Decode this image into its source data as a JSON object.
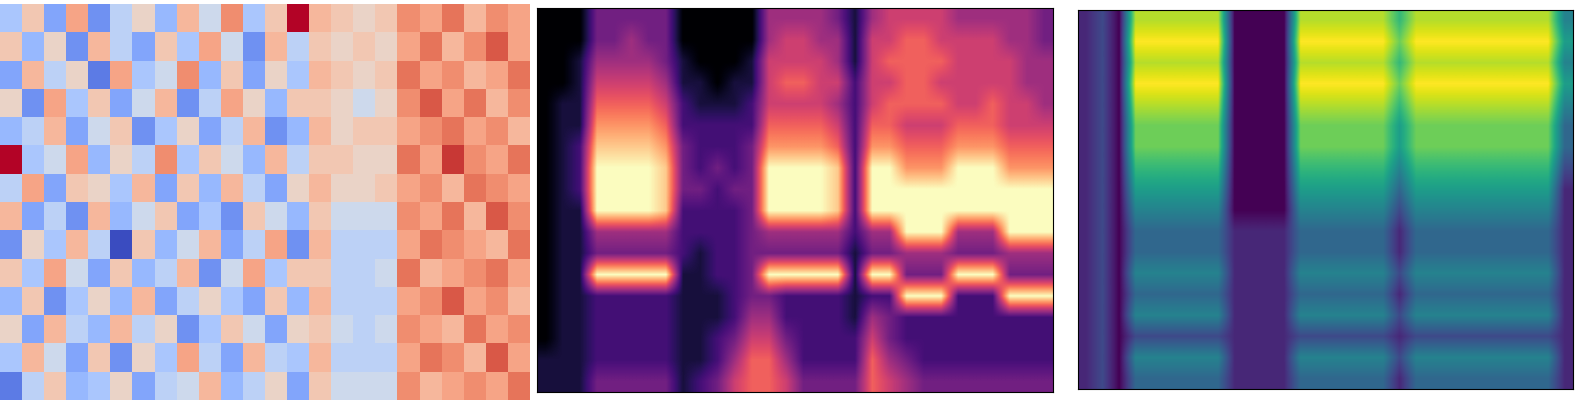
{
  "chart_data": [
    {
      "type": "heatmap",
      "color": "coolwarm",
      "tick_labels": false,
      "cells": [
        [
          -3,
          2,
          -5,
          4,
          -6,
          -2,
          1,
          -4,
          3,
          -1,
          5,
          -3,
          2,
          9,
          3,
          2,
          1,
          2,
          5,
          4,
          6,
          3,
          5,
          4
        ],
        [
          2,
          -4,
          1,
          -6,
          3,
          -2,
          -5,
          2,
          -3,
          4,
          -1,
          -6,
          3,
          -2,
          2,
          1,
          2,
          1,
          4,
          6,
          3,
          5,
          7,
          4
        ],
        [
          -5,
          3,
          -2,
          1,
          -7,
          4,
          -3,
          -1,
          5,
          -4,
          2,
          -5,
          1,
          -3,
          3,
          2,
          1,
          2,
          6,
          4,
          5,
          3,
          4,
          6
        ],
        [
          1,
          -6,
          4,
          -3,
          2,
          -5,
          -1,
          3,
          -6,
          -2,
          4,
          1,
          -4,
          2,
          2,
          1,
          -1,
          1,
          5,
          7,
          4,
          6,
          3,
          5
        ],
        [
          -4,
          -2,
          3,
          -5,
          -1,
          2,
          -6,
          -3,
          1,
          -5,
          -2,
          3,
          -6,
          -4,
          3,
          1,
          2,
          2,
          4,
          5,
          6,
          4,
          5,
          3
        ],
        [
          9,
          -3,
          -1,
          4,
          -4,
          1,
          -2,
          5,
          -3,
          2,
          -1,
          -4,
          3,
          -2,
          2,
          2,
          1,
          1,
          6,
          4,
          8,
          5,
          4,
          6
        ],
        [
          -2,
          4,
          -5,
          2,
          1,
          -3,
          3,
          -5,
          2,
          -4,
          3,
          -2,
          -5,
          1,
          3,
          1,
          1,
          2,
          4,
          5,
          3,
          6,
          5,
          4
        ],
        [
          3,
          -5,
          -2,
          -6,
          3,
          -4,
          -1,
          2,
          -5,
          -3,
          -6,
          2,
          -1,
          -4,
          2,
          -1,
          -1,
          -1,
          5,
          4,
          6,
          3,
          7,
          5
        ],
        [
          -6,
          1,
          -3,
          3,
          -2,
          -9,
          2,
          -4,
          -1,
          3,
          -5,
          -2,
          4,
          -6,
          3,
          -2,
          -2,
          -2,
          4,
          6,
          5,
          4,
          3,
          6
        ],
        [
          2,
          -3,
          4,
          -1,
          -5,
          2,
          -4,
          -2,
          3,
          -6,
          -1,
          4,
          -3,
          2,
          2,
          -2,
          -2,
          -1,
          6,
          3,
          4,
          5,
          6,
          4
        ],
        [
          -4,
          2,
          -6,
          -3,
          1,
          -4,
          3,
          -5,
          -2,
          1,
          -3,
          -5,
          2,
          -4,
          3,
          -2,
          -2,
          -2,
          4,
          5,
          7,
          4,
          5,
          3
        ],
        [
          1,
          -5,
          3,
          -2,
          -4,
          3,
          -2,
          1,
          -6,
          -3,
          2,
          -1,
          -5,
          1,
          2,
          -1,
          -2,
          -1,
          5,
          4,
          3,
          6,
          4,
          5
        ],
        [
          -3,
          3,
          -1,
          -5,
          2,
          -6,
          1,
          -3,
          4,
          -2,
          -5,
          3,
          -2,
          -3,
          3,
          -2,
          -2,
          -2,
          4,
          6,
          5,
          3,
          7,
          4
        ],
        [
          -7,
          -2,
          2,
          -4,
          -3,
          1,
          -5,
          -2,
          -1,
          3,
          -4,
          -2,
          1,
          -5,
          2,
          -1,
          -1,
          -1,
          5,
          3,
          4,
          5,
          4,
          6
        ]
      ]
    },
    {
      "type": "heatmap",
      "color": "magma",
      "tick_labels": false,
      "cells": [
        [
          0,
          0,
          0,
          3,
          3,
          3,
          3,
          3,
          0,
          0,
          0,
          0,
          0,
          4,
          4,
          4,
          4,
          3,
          1,
          4,
          5,
          5,
          5,
          5,
          4,
          4,
          4,
          4,
          4,
          3
        ],
        [
          0,
          0,
          0,
          3,
          3,
          4,
          3,
          3,
          0,
          0,
          0,
          0,
          0,
          4,
          5,
          5,
          4,
          4,
          1,
          5,
          5,
          6,
          6,
          5,
          5,
          5,
          5,
          4,
          4,
          3
        ],
        [
          0,
          0,
          1,
          4,
          4,
          4,
          4,
          3,
          1,
          0,
          0,
          0,
          1,
          5,
          5,
          5,
          5,
          4,
          1,
          5,
          6,
          6,
          6,
          6,
          5,
          5,
          5,
          5,
          4,
          4
        ],
        [
          0,
          0,
          1,
          5,
          5,
          5,
          5,
          4,
          1,
          1,
          0,
          1,
          1,
          5,
          6,
          6,
          5,
          5,
          2,
          5,
          5,
          6,
          6,
          5,
          5,
          5,
          5,
          5,
          4,
          4
        ],
        [
          0,
          1,
          1,
          6,
          6,
          6,
          6,
          5,
          2,
          1,
          1,
          1,
          2,
          5,
          5,
          5,
          5,
          4,
          2,
          5,
          6,
          6,
          6,
          6,
          5,
          5,
          6,
          5,
          5,
          4
        ],
        [
          0,
          1,
          1,
          7,
          7,
          7,
          7,
          6,
          2,
          2,
          2,
          2,
          2,
          6,
          6,
          6,
          6,
          5,
          2,
          6,
          6,
          5,
          5,
          5,
          6,
          6,
          6,
          5,
          5,
          5
        ],
        [
          0,
          1,
          2,
          8,
          8,
          8,
          8,
          7,
          3,
          2,
          2,
          2,
          3,
          7,
          7,
          7,
          7,
          6,
          2,
          7,
          7,
          6,
          6,
          6,
          7,
          7,
          7,
          6,
          6,
          6
        ],
        [
          0,
          1,
          2,
          9,
          9,
          9,
          9,
          8,
          3,
          2,
          3,
          2,
          3,
          9,
          9,
          9,
          9,
          8,
          2,
          9,
          9,
          7,
          7,
          7,
          9,
          9,
          9,
          7,
          7,
          7
        ],
        [
          0,
          1,
          2,
          9,
          9,
          9,
          9,
          8,
          3,
          3,
          2,
          3,
          3,
          9,
          9,
          9,
          9,
          8,
          2,
          9,
          9,
          9,
          9,
          9,
          9,
          9,
          9,
          9,
          9,
          9
        ],
        [
          0,
          1,
          1,
          9,
          9,
          9,
          9,
          8,
          2,
          2,
          2,
          2,
          3,
          9,
          9,
          9,
          9,
          8,
          2,
          9,
          9,
          9,
          9,
          9,
          9,
          9,
          9,
          9,
          9,
          9
        ],
        [
          0,
          1,
          1,
          4,
          4,
          4,
          4,
          4,
          2,
          2,
          2,
          2,
          3,
          4,
          4,
          4,
          4,
          4,
          2,
          4,
          4,
          9,
          9,
          9,
          4,
          4,
          4,
          9,
          9,
          9
        ],
        [
          0,
          1,
          1,
          3,
          3,
          3,
          3,
          3,
          2,
          1,
          2,
          2,
          3,
          3,
          3,
          3,
          3,
          3,
          1,
          3,
          3,
          4,
          4,
          4,
          3,
          3,
          3,
          4,
          4,
          4
        ],
        [
          0,
          1,
          1,
          9,
          9,
          9,
          9,
          9,
          1,
          1,
          2,
          2,
          3,
          9,
          9,
          9,
          9,
          9,
          1,
          9,
          9,
          3,
          3,
          3,
          9,
          9,
          9,
          3,
          3,
          3
        ],
        [
          0,
          1,
          1,
          2,
          2,
          2,
          2,
          2,
          1,
          1,
          1,
          2,
          3,
          3,
          2,
          2,
          2,
          2,
          1,
          2,
          2,
          9,
          9,
          9,
          2,
          2,
          2,
          9,
          9,
          9
        ],
        [
          0,
          1,
          1,
          2,
          2,
          2,
          2,
          2,
          1,
          1,
          1,
          2,
          4,
          4,
          2,
          2,
          2,
          2,
          1,
          4,
          3,
          2,
          2,
          2,
          2,
          2,
          2,
          2,
          2,
          2
        ],
        [
          0,
          1,
          1,
          2,
          2,
          2,
          2,
          2,
          1,
          1,
          2,
          3,
          5,
          5,
          3,
          2,
          2,
          2,
          2,
          5,
          3,
          2,
          2,
          2,
          2,
          2,
          2,
          2,
          2,
          2
        ],
        [
          1,
          1,
          1,
          2,
          2,
          2,
          2,
          2,
          1,
          1,
          2,
          4,
          6,
          6,
          4,
          2,
          2,
          2,
          2,
          6,
          4,
          3,
          2,
          2,
          2,
          2,
          2,
          2,
          2,
          2
        ],
        [
          1,
          1,
          1,
          3,
          3,
          3,
          3,
          3,
          1,
          2,
          3,
          5,
          6,
          6,
          5,
          3,
          3,
          3,
          3,
          6,
          5,
          4,
          3,
          3,
          3,
          3,
          3,
          3,
          3,
          3
        ]
      ]
    },
    {
      "type": "heatmap",
      "color": "viridis",
      "tick_labels": false,
      "cells": [
        [
          1,
          2,
          0,
          8,
          8,
          8,
          8,
          8,
          8,
          0,
          0,
          0,
          0,
          8,
          8,
          8,
          8,
          8,
          8,
          6,
          8,
          8,
          8,
          8,
          8,
          8,
          8,
          8,
          8,
          4
        ],
        [
          1,
          2,
          0,
          9,
          9,
          9,
          9,
          9,
          9,
          0,
          0,
          0,
          0,
          9,
          9,
          9,
          9,
          9,
          9,
          7,
          9,
          9,
          9,
          9,
          9,
          9,
          9,
          9,
          9,
          5
        ],
        [
          1,
          2,
          0,
          8,
          8,
          8,
          8,
          8,
          8,
          0,
          0,
          0,
          0,
          8,
          8,
          8,
          8,
          8,
          8,
          6,
          8,
          8,
          8,
          8,
          8,
          8,
          8,
          8,
          8,
          4
        ],
        [
          1,
          2,
          0,
          9,
          9,
          9,
          9,
          9,
          9,
          0,
          0,
          0,
          0,
          9,
          9,
          9,
          9,
          9,
          9,
          7,
          9,
          9,
          9,
          9,
          9,
          9,
          9,
          9,
          9,
          5
        ],
        [
          1,
          2,
          0,
          8,
          8,
          8,
          8,
          8,
          8,
          0,
          0,
          0,
          0,
          8,
          8,
          8,
          8,
          8,
          8,
          6,
          8,
          8,
          8,
          8,
          8,
          8,
          8,
          8,
          8,
          4
        ],
        [
          1,
          2,
          0,
          7,
          7,
          7,
          7,
          7,
          7,
          0,
          0,
          0,
          0,
          7,
          7,
          7,
          7,
          7,
          7,
          5,
          7,
          7,
          7,
          7,
          7,
          7,
          7,
          7,
          7,
          3
        ],
        [
          1,
          2,
          0,
          7,
          7,
          7,
          7,
          7,
          7,
          0,
          0,
          0,
          0,
          7,
          7,
          7,
          7,
          7,
          7,
          5,
          7,
          7,
          7,
          7,
          7,
          7,
          7,
          7,
          7,
          3
        ],
        [
          1,
          2,
          0,
          6,
          6,
          6,
          6,
          6,
          6,
          0,
          0,
          0,
          0,
          6,
          6,
          6,
          6,
          6,
          6,
          4,
          6,
          6,
          6,
          6,
          6,
          6,
          6,
          6,
          6,
          2
        ],
        [
          1,
          2,
          0,
          5,
          5,
          5,
          5,
          5,
          5,
          0,
          0,
          0,
          0,
          5,
          5,
          5,
          5,
          5,
          5,
          3,
          5,
          5,
          5,
          5,
          5,
          5,
          5,
          5,
          5,
          1
        ],
        [
          1,
          2,
          0,
          4,
          4,
          4,
          4,
          4,
          4,
          0,
          0,
          0,
          0,
          4,
          4,
          4,
          4,
          4,
          4,
          2,
          4,
          4,
          4,
          4,
          4,
          4,
          4,
          4,
          4,
          1
        ],
        [
          1,
          2,
          0,
          3,
          3,
          3,
          3,
          3,
          3,
          1,
          1,
          1,
          1,
          3,
          3,
          3,
          3,
          3,
          3,
          1,
          3,
          3,
          3,
          3,
          3,
          3,
          3,
          3,
          3,
          1
        ],
        [
          1,
          2,
          0,
          3,
          3,
          3,
          3,
          3,
          3,
          1,
          1,
          1,
          1,
          3,
          3,
          3,
          3,
          3,
          3,
          1,
          3,
          3,
          3,
          3,
          3,
          3,
          3,
          3,
          3,
          1
        ],
        [
          1,
          2,
          0,
          4,
          4,
          4,
          4,
          4,
          4,
          1,
          1,
          1,
          1,
          4,
          4,
          4,
          4,
          4,
          4,
          2,
          4,
          4,
          4,
          4,
          4,
          4,
          4,
          4,
          4,
          1
        ],
        [
          1,
          2,
          0,
          3,
          3,
          3,
          3,
          3,
          3,
          1,
          1,
          1,
          1,
          3,
          3,
          3,
          3,
          3,
          3,
          1,
          3,
          3,
          3,
          3,
          3,
          3,
          3,
          3,
          3,
          1
        ],
        [
          1,
          2,
          0,
          4,
          4,
          4,
          4,
          4,
          4,
          1,
          1,
          1,
          1,
          4,
          4,
          4,
          4,
          4,
          4,
          2,
          4,
          4,
          4,
          4,
          4,
          4,
          4,
          4,
          4,
          1
        ],
        [
          1,
          2,
          0,
          2,
          2,
          2,
          2,
          2,
          2,
          1,
          1,
          1,
          1,
          2,
          2,
          2,
          2,
          2,
          2,
          1,
          2,
          2,
          2,
          2,
          2,
          2,
          2,
          2,
          2,
          1
        ],
        [
          1,
          2,
          0,
          4,
          4,
          4,
          4,
          4,
          4,
          1,
          1,
          1,
          1,
          4,
          4,
          4,
          4,
          4,
          4,
          2,
          4,
          4,
          4,
          4,
          4,
          4,
          4,
          4,
          4,
          1
        ],
        [
          1,
          2,
          0,
          3,
          3,
          3,
          3,
          3,
          3,
          1,
          1,
          1,
          1,
          3,
          3,
          3,
          3,
          3,
          3,
          1,
          3,
          3,
          3,
          3,
          3,
          3,
          3,
          3,
          3,
          1
        ]
      ]
    }
  ]
}
